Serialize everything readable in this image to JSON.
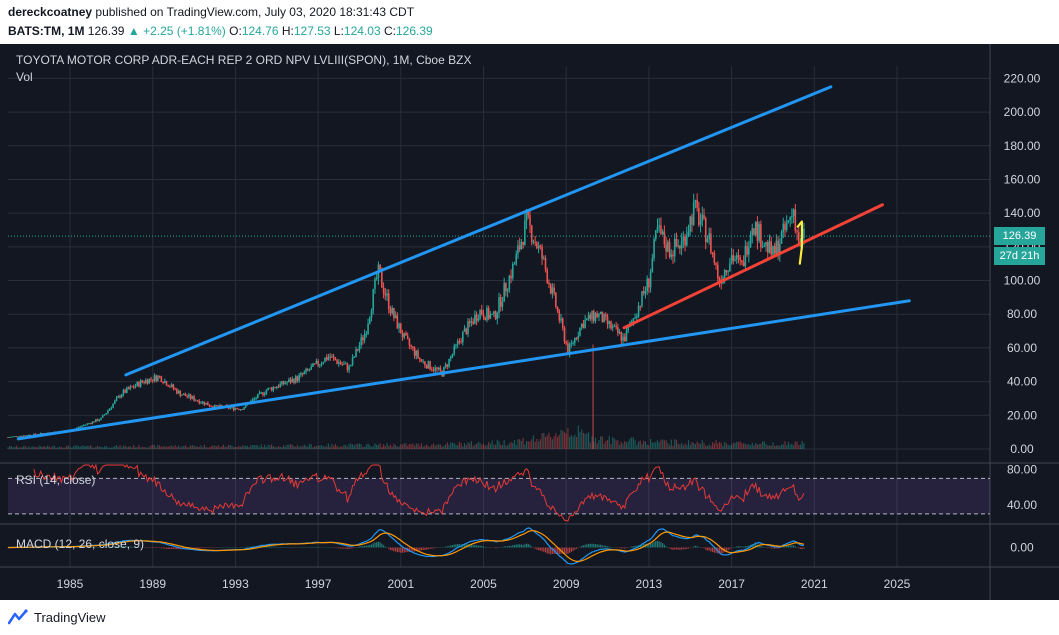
{
  "header": {
    "publisher": "dereckcoatney",
    "published_text": "published on TradingView.com, July 03, 2020 18:31:43 CDT",
    "ticker": "BATS:TM, 1M",
    "last": "126.39",
    "change": "+2.25 (+1.81%)",
    "o_label": "O:",
    "o_value": "124.76",
    "h_label": "H:",
    "h_value": "127.53",
    "l_label": "L:",
    "l_value": "124.03",
    "c_label": "C:",
    "c_value": "126.39"
  },
  "chart_title": "TOYOTA MOTOR CORP ADR-EACH REP 2 ORD NPV LVLIII(SPON), 1M, Cboe BZX",
  "vol_label": "Vol",
  "rsi_label": "RSI (14, close)",
  "macd_label": "MACD (12, 26, close, 9)",
  "price_tag": "126.39",
  "countdown_tag": "27d 21h",
  "footer_brand": "TradingView",
  "colors": {
    "background": "#131722",
    "grid": "#2a2e39",
    "axis_text": "#d1d4dc",
    "up": "#26a69a",
    "down": "#ef5350",
    "trend_blue": "#2196f3",
    "trend_red": "#f44336",
    "rsi": "#e53935",
    "macd": "#2196f3",
    "signal": "#ff9800"
  },
  "chart_data": [
    {
      "type": "candlestick",
      "title": "TOYOTA MOTOR CORP ADR-EACH REP 2 ORD NPV LVLIII(SPON), 1M, Cboe BZX",
      "x_ticks": [
        "1985",
        "1989",
        "1993",
        "1997",
        "2001",
        "2005",
        "2009",
        "2013",
        "2017",
        "2021",
        "2025"
      ],
      "y_ticks": [
        "0.00",
        "20.00",
        "40.00",
        "60.00",
        "80.00",
        "100.00",
        "120.00",
        "140.00",
        "160.00",
        "180.00",
        "200.00",
        "220.00"
      ],
      "ylim": [
        0,
        225
      ],
      "xlim": [
        1982.0,
        2029.5
      ],
      "last_price": 126.39,
      "grid": true,
      "price_anchors": [
        [
          1982.0,
          7
        ],
        [
          1985.0,
          11
        ],
        [
          1986.5,
          18
        ],
        [
          1987.5,
          33
        ],
        [
          1988.5,
          40
        ],
        [
          1989.3,
          43
        ],
        [
          1990.3,
          33
        ],
        [
          1992.0,
          25
        ],
        [
          1993.3,
          24
        ],
        [
          1994.5,
          35
        ],
        [
          1996.0,
          42
        ],
        [
          1997.5,
          55
        ],
        [
          1998.5,
          48
        ],
        [
          1999.3,
          70
        ],
        [
          1999.9,
          105
        ],
        [
          2000.6,
          80
        ],
        [
          2001.2,
          65
        ],
        [
          2002.0,
          52
        ],
        [
          2003.0,
          45
        ],
        [
          2004.0,
          68
        ],
        [
          2004.8,
          82
        ],
        [
          2005.5,
          78
        ],
        [
          2006.5,
          110
        ],
        [
          2007.1,
          135
        ],
        [
          2007.8,
          115
        ],
        [
          2008.5,
          85
        ],
        [
          2009.1,
          58
        ],
        [
          2009.8,
          75
        ],
        [
          2010.5,
          80
        ],
        [
          2011.2,
          72
        ],
        [
          2011.8,
          65
        ],
        [
          2012.4,
          82
        ],
        [
          2013.0,
          100
        ],
        [
          2013.4,
          130
        ],
        [
          2014.0,
          118
        ],
        [
          2014.6,
          122
        ],
        [
          2015.2,
          143
        ],
        [
          2015.9,
          125
        ],
        [
          2016.4,
          100
        ],
        [
          2017.0,
          115
        ],
        [
          2017.5,
          108
        ],
        [
          2018.0,
          135
        ],
        [
          2018.6,
          122
        ],
        [
          2019.0,
          115
        ],
        [
          2019.6,
          130
        ],
        [
          2020.0,
          142
        ],
        [
          2020.3,
          118
        ],
        [
          2020.5,
          126
        ]
      ],
      "volume_anchors": [
        [
          1982,
          1
        ],
        [
          1995,
          1.5
        ],
        [
          2003,
          2
        ],
        [
          2006,
          3
        ],
        [
          2008,
          5
        ],
        [
          2009,
          9
        ],
        [
          2010,
          6
        ],
        [
          2011,
          4
        ],
        [
          2014,
          3
        ],
        [
          2018,
          2.5
        ],
        [
          2020.5,
          2.5
        ]
      ],
      "volume_spike": {
        "x": 2010.3,
        "value": 55
      },
      "trendlines": [
        {
          "name": "upper-channel",
          "color": "#2196f3",
          "from": [
            1987.7,
            44
          ],
          "to": [
            2021.8,
            215
          ]
        },
        {
          "name": "lower-channel",
          "color": "#2196f3",
          "from": [
            1982.5,
            6
          ],
          "to": [
            2025.6,
            88
          ]
        },
        {
          "name": "support",
          "color": "#f44336",
          "from": [
            2011.8,
            72
          ],
          "to": [
            2024.3,
            145
          ]
        }
      ],
      "markers": [
        {
          "name": "yellow-hook",
          "color": "#ffeb3b",
          "points": [
            [
              2020.2,
              132
            ],
            [
              2020.4,
              135
            ],
            [
              2020.4,
              120
            ],
            [
              2020.3,
              110
            ]
          ]
        }
      ]
    },
    {
      "type": "line",
      "title": "RSI (14, close)",
      "y_ticks": [
        "40.00",
        "80.00"
      ],
      "ylim": [
        22,
        85
      ],
      "bands": [
        70,
        30
      ],
      "series_color": "#e53935"
    },
    {
      "type": "line",
      "title": "MACD (12, 26, close, 9)",
      "y_ticks": [
        "0.00"
      ],
      "ylim": [
        -15,
        15
      ],
      "series_colors": {
        "macd": "#2196f3",
        "signal": "#ff9800"
      }
    }
  ]
}
